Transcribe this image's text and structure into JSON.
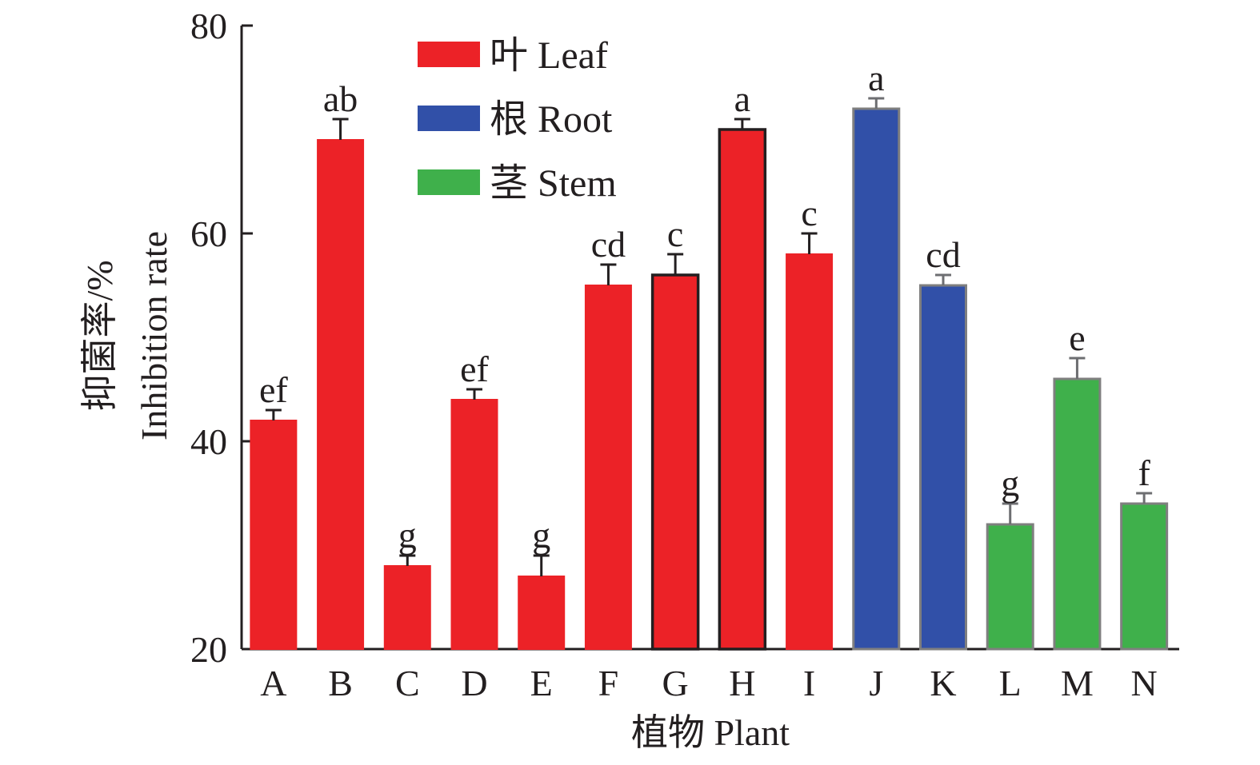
{
  "chart_data": {
    "type": "bar",
    "title": "",
    "xlabel": "植物 Plant",
    "ylabel_cn": "抑菌率/%",
    "ylabel_en": "Inhibition rate",
    "ylim": [
      20,
      80
    ],
    "yticks": [
      20,
      40,
      60,
      80
    ],
    "grid": false,
    "legend_position": "top-center",
    "categories": [
      "A",
      "B",
      "C",
      "D",
      "E",
      "F",
      "G",
      "H",
      "I",
      "J",
      "K",
      "L",
      "M",
      "N"
    ],
    "values": [
      42,
      69,
      28,
      44,
      27,
      55,
      56,
      70,
      58,
      72,
      55,
      32,
      46,
      34
    ],
    "errors": [
      1,
      2,
      1,
      1,
      2,
      2,
      2,
      1,
      2,
      1,
      1,
      2,
      2,
      1
    ],
    "significance": [
      "ef",
      "ab",
      "g",
      "ef",
      "g",
      "cd",
      "c",
      "a",
      "c",
      "a",
      "cd",
      "g",
      "e",
      "f"
    ],
    "groups": [
      "Leaf",
      "Leaf",
      "Leaf",
      "Leaf",
      "Leaf",
      "Leaf",
      "Leaf",
      "Leaf",
      "Leaf",
      "Root",
      "Root",
      "Stem",
      "Stem",
      "Stem"
    ],
    "legend": [
      {
        "key": "Leaf",
        "label": "叶 Leaf",
        "color": "#ec2227"
      },
      {
        "key": "Root",
        "label": "根 Root",
        "color": "#3150a8"
      },
      {
        "key": "Stem",
        "label": "茎 Stem",
        "color": "#3fb04b"
      }
    ],
    "outline_colors": {
      "default": "#ec2227",
      "emphasis": "#231f20",
      "root_stem": "#7f7f7f"
    },
    "emphasized_bars": [
      "G",
      "H"
    ]
  }
}
